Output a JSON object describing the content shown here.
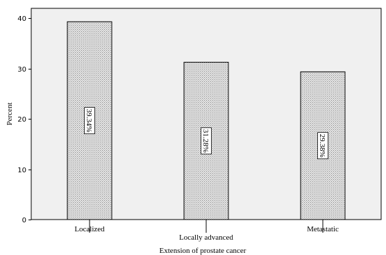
{
  "chart_data": {
    "type": "bar",
    "title": "",
    "xlabel": "Extension of prostate cancer",
    "ylabel": "Percent",
    "ylim": [
      0,
      42
    ],
    "yticks": [
      0,
      10,
      20,
      30,
      40
    ],
    "categories": [
      "Localized",
      "Locally advanced",
      "Metastatic"
    ],
    "values": [
      39.34,
      31.28,
      29.38
    ],
    "data_labels": [
      "39.34%",
      "31.28%",
      "29.38%"
    ],
    "grid": false,
    "legend": "none",
    "colors": {
      "plot_background": "#f0f0f0",
      "bar_fill": "#d9d9d9",
      "bar_stroke": "#000000",
      "label_box": "#ffffff"
    }
  }
}
